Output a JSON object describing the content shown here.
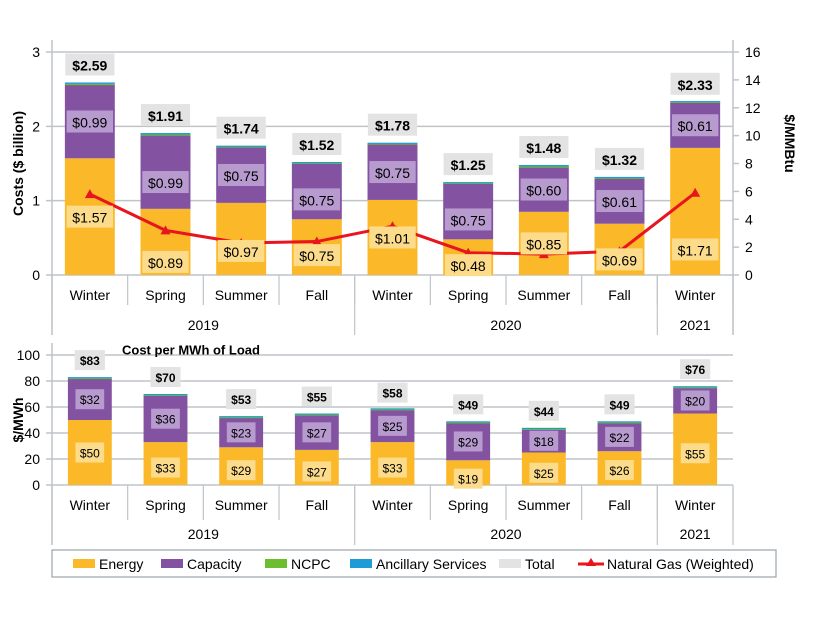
{
  "colors": {
    "energy": "#FBB829",
    "capacity": "#8353A2",
    "ncpc": "#6DBE2E",
    "ancillary": "#1F9BD7",
    "total_box": "#E3E3E3",
    "gas": "#E8141E",
    "energy_label_box": "#FCDC8A",
    "capacity_label_box": "#B79BCF",
    "grid": "#BFC4C8"
  },
  "chart_data": [
    {
      "type": "bar",
      "stacked": true,
      "id": "upper",
      "title": "",
      "ylabel": "Costs ($ billion)",
      "y2label": "$/MMBtu",
      "ylim": [
        0,
        3
      ],
      "y2lim": [
        0,
        16
      ],
      "yticks": [
        "0",
        "1",
        "2",
        "3"
      ],
      "y2ticks": [
        "0",
        "2",
        "4",
        "6",
        "8",
        "10",
        "12",
        "14",
        "16"
      ],
      "grid": true,
      "categories": [
        "Winter",
        "Spring",
        "Summer",
        "Fall",
        "Winter",
        "Spring",
        "Summer",
        "Fall",
        "Winter"
      ],
      "groups": [
        {
          "label": "2019",
          "span": 4
        },
        {
          "label": "2020",
          "span": 4
        },
        {
          "label": "2021",
          "span": 1
        }
      ],
      "series": [
        {
          "name": "Energy",
          "values": [
            1.57,
            0.89,
            0.97,
            0.75,
            1.01,
            0.48,
            0.85,
            0.69,
            1.71
          ],
          "labels": [
            "$1.57",
            "$0.89",
            "$0.97",
            "$0.75",
            "$1.01",
            "$0.48",
            "$0.85",
            "$0.69",
            "$1.71"
          ]
        },
        {
          "name": "Capacity",
          "values": [
            0.99,
            0.99,
            0.75,
            0.75,
            0.75,
            0.75,
            0.6,
            0.61,
            0.61
          ],
          "labels": [
            "$0.99",
            "$0.99",
            "$0.75",
            "$0.75",
            "$0.75",
            "$0.75",
            "$0.60",
            "$0.61",
            "$0.61"
          ]
        },
        {
          "name": "NCPC",
          "values": [
            0.01,
            0.01,
            0.01,
            0.01,
            0.01,
            0.01,
            0.01,
            0.01,
            0.01
          ]
        },
        {
          "name": "Ancillary Services",
          "values": [
            0.02,
            0.02,
            0.01,
            0.01,
            0.01,
            0.01,
            0.02,
            0.01,
            0.01
          ]
        },
        {
          "name": "Total",
          "values": [
            2.59,
            1.91,
            1.74,
            1.52,
            1.78,
            1.25,
            1.48,
            1.32,
            2.33
          ],
          "labels": [
            "$2.59",
            "$1.91",
            "$1.74",
            "$1.52",
            "$1.78",
            "$1.25",
            "$1.48",
            "$1.32",
            "$2.33"
          ]
        },
        {
          "name": "Natural Gas (Weighted)",
          "axis": "right",
          "type": "line",
          "values": [
            5.8,
            3.2,
            2.3,
            2.4,
            3.5,
            1.6,
            1.5,
            1.7,
            5.9
          ]
        }
      ]
    },
    {
      "type": "bar",
      "stacked": true,
      "id": "lower",
      "title": "Cost per MWh of Load",
      "ylabel": "$/MWh",
      "ylim": [
        0,
        100
      ],
      "yticks": [
        "0",
        "20",
        "40",
        "60",
        "80",
        "100"
      ],
      "grid": true,
      "categories": [
        "Winter",
        "Spring",
        "Summer",
        "Fall",
        "Winter",
        "Spring",
        "Summer",
        "Fall",
        "Winter"
      ],
      "groups": [
        {
          "label": "2019",
          "span": 4
        },
        {
          "label": "2020",
          "span": 4
        },
        {
          "label": "2021",
          "span": 1
        }
      ],
      "series": [
        {
          "name": "Energy",
          "values": [
            50,
            33,
            29,
            27,
            33,
            19,
            25,
            26,
            55
          ],
          "labels": [
            "$50",
            "$33",
            "$29",
            "$27",
            "$33",
            "$19",
            "$25",
            "$26",
            "$55"
          ]
        },
        {
          "name": "Capacity",
          "values": [
            32,
            36,
            23,
            27,
            25,
            29,
            18,
            22,
            20
          ],
          "labels": [
            "$32",
            "$36",
            "$23",
            "$27",
            "$25",
            "$29",
            "$18",
            "$22",
            "$20"
          ]
        },
        {
          "name": "NCPC",
          "values": [
            0.4,
            0.4,
            0.3,
            0.3,
            0.3,
            0.3,
            0.3,
            0.3,
            0.3
          ]
        },
        {
          "name": "Ancillary Services",
          "values": [
            0.6,
            0.6,
            0.7,
            0.7,
            0.7,
            0.7,
            0.7,
            0.7,
            0.7
          ]
        },
        {
          "name": "Total",
          "values": [
            83,
            70,
            53,
            55,
            58,
            49,
            44,
            49,
            76
          ],
          "labels": [
            "$83",
            "$70",
            "$53",
            "$55",
            "$58",
            "$49",
            "$44",
            "$49",
            "$76"
          ]
        }
      ]
    }
  ],
  "legend": {
    "placement": "bottom",
    "items": [
      {
        "name": "Energy",
        "kind": "swatch",
        "color_key": "energy"
      },
      {
        "name": "Capacity",
        "kind": "swatch",
        "color_key": "capacity"
      },
      {
        "name": "NCPC",
        "kind": "swatch",
        "color_key": "ncpc"
      },
      {
        "name": "Ancillary Services",
        "kind": "swatch",
        "color_key": "ancillary"
      },
      {
        "name": "Total",
        "kind": "swatch",
        "color_key": "total_box"
      },
      {
        "name": "Natural Gas (Weighted)",
        "kind": "line-marker",
        "color_key": "gas"
      }
    ]
  }
}
